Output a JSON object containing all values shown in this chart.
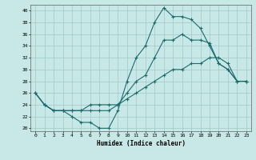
{
  "xlabel": "Humidex (Indice chaleur)",
  "background_color": "#c8e8e8",
  "grid_color": "#a0c8c8",
  "line_color": "#1a6b6b",
  "xlim": [
    -0.5,
    23.5
  ],
  "ylim": [
    19.5,
    41.0
  ],
  "xticks": [
    0,
    1,
    2,
    3,
    4,
    5,
    6,
    7,
    8,
    9,
    10,
    11,
    12,
    13,
    14,
    15,
    16,
    17,
    18,
    19,
    20,
    21,
    22,
    23
  ],
  "yticks": [
    20,
    22,
    24,
    26,
    28,
    30,
    32,
    34,
    36,
    38,
    40
  ],
  "line1": {
    "x": [
      0,
      1,
      2,
      3,
      4,
      5,
      6,
      7,
      8,
      9,
      10,
      11,
      12,
      13,
      14,
      15,
      16,
      17,
      18,
      19,
      20,
      21,
      22,
      23
    ],
    "y": [
      26,
      24,
      23,
      23,
      22,
      21,
      21,
      20,
      20,
      23,
      28,
      32,
      34,
      38,
      40.5,
      39,
      39,
      38.5,
      37,
      34,
      31,
      30,
      28,
      28
    ]
  },
  "line2": {
    "x": [
      0,
      1,
      2,
      3,
      4,
      5,
      6,
      7,
      8,
      9,
      10,
      11,
      12,
      13,
      14,
      15,
      16,
      17,
      18,
      19,
      20,
      21,
      22,
      23
    ],
    "y": [
      26,
      24,
      23,
      23,
      23,
      23,
      23,
      23,
      23,
      24,
      26,
      28,
      29,
      32,
      35,
      35,
      36,
      35,
      35,
      34.5,
      31,
      30,
      28,
      28
    ]
  },
  "line3": {
    "x": [
      0,
      1,
      2,
      3,
      4,
      5,
      6,
      7,
      8,
      9,
      10,
      11,
      12,
      13,
      14,
      15,
      16,
      17,
      18,
      19,
      20,
      21,
      22,
      23
    ],
    "y": [
      26,
      24,
      23,
      23,
      23,
      23,
      24,
      24,
      24,
      24,
      25,
      26,
      27,
      28,
      29,
      30,
      30,
      31,
      31,
      32,
      32,
      31,
      28,
      28
    ]
  }
}
